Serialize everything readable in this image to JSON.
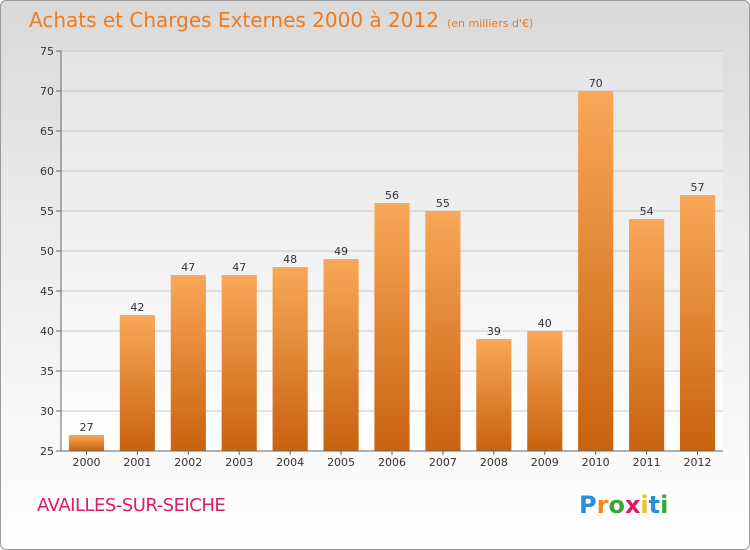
{
  "header": {
    "title": "Achats et Charges Externes 2000 à 2012",
    "subtitle": "(en milliers d'€)"
  },
  "footer": {
    "commune": "AVAILLES-SUR-SEICHE"
  },
  "logo": {
    "letters": [
      "P",
      "r",
      "o",
      "x",
      "i",
      "t",
      "i"
    ],
    "colors": [
      "#2a8fd8",
      "#f08a1c",
      "#3aa63a",
      "#e0186c",
      "#f0c21c",
      "#2a8fd8",
      "#3aa63a"
    ]
  },
  "chart_data": {
    "type": "bar",
    "categories": [
      "2000",
      "2001",
      "2002",
      "2003",
      "2004",
      "2005",
      "2006",
      "2007",
      "2008",
      "2009",
      "2010",
      "2011",
      "2012"
    ],
    "values": [
      27,
      42,
      47,
      47,
      48,
      49,
      56,
      55,
      39,
      40,
      70,
      54,
      57
    ],
    "ylim": [
      25,
      75
    ],
    "yticks": [
      25,
      30,
      35,
      40,
      45,
      50,
      55,
      60,
      65,
      70,
      75
    ],
    "grid": true,
    "bar_color": "#f07a1e"
  }
}
